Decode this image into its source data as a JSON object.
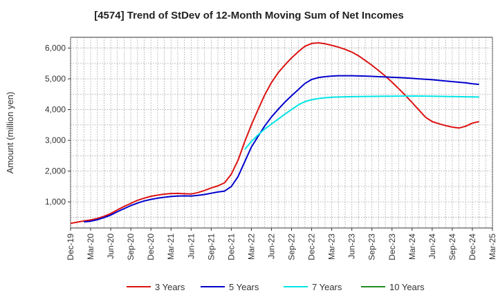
{
  "chart_data": {
    "type": "line",
    "title": "[4574]  Trend of StDev of 12-Month Moving Sum of Net Incomes",
    "ylabel": "Amount (million yen)",
    "xlabel": "",
    "ylim": [
      150,
      6350
    ],
    "yticks": [
      1000,
      2000,
      3000,
      4000,
      5000,
      6000
    ],
    "ytick_labels": [
      "1,000",
      "2,000",
      "3,000",
      "4,000",
      "5,000",
      "6,000"
    ],
    "xticks": [
      "Dec-19",
      "Mar-20",
      "Jun-20",
      "Sep-20",
      "Dec-20",
      "Mar-21",
      "Jun-21",
      "Sep-21",
      "Dec-21",
      "Mar-22",
      "Jun-22",
      "Sep-22",
      "Dec-22",
      "Mar-23",
      "Jun-23",
      "Sep-23",
      "Dec-23",
      "Mar-24",
      "Jun-24",
      "Sep-24",
      "Dec-24",
      "Mar-25"
    ],
    "grid": true,
    "legend_position": "bottom",
    "series": [
      {
        "name": "3 Years",
        "color": "#dd1111",
        "points": [
          [
            "Dec-19",
            300
          ],
          [
            "Jan-20",
            340
          ],
          [
            "Feb-20",
            380
          ],
          [
            "Mar-20",
            410
          ],
          [
            "Apr-20",
            460
          ],
          [
            "May-20",
            530
          ],
          [
            "Jun-20",
            620
          ],
          [
            "Jul-20",
            740
          ],
          [
            "Aug-20",
            850
          ],
          [
            "Sep-20",
            950
          ],
          [
            "Oct-20",
            1050
          ],
          [
            "Nov-20",
            1120
          ],
          [
            "Dec-20",
            1180
          ],
          [
            "Jan-21",
            1220
          ],
          [
            "Feb-21",
            1250
          ],
          [
            "Mar-21",
            1270
          ],
          [
            "Apr-21",
            1275
          ],
          [
            "May-21",
            1265
          ],
          [
            "Jun-21",
            1255
          ],
          [
            "Jul-21",
            1300
          ],
          [
            "Aug-21",
            1370
          ],
          [
            "Sep-21",
            1450
          ],
          [
            "Oct-21",
            1520
          ],
          [
            "Nov-21",
            1620
          ],
          [
            "Dec-21",
            1900
          ],
          [
            "Jan-22",
            2350
          ],
          [
            "Feb-22",
            2950
          ],
          [
            "Mar-22",
            3500
          ],
          [
            "Apr-22",
            4000
          ],
          [
            "May-22",
            4480
          ],
          [
            "Jun-22",
            4880
          ],
          [
            "Jul-22",
            5200
          ],
          [
            "Aug-22",
            5450
          ],
          [
            "Sep-22",
            5680
          ],
          [
            "Oct-22",
            5880
          ],
          [
            "Nov-22",
            6060
          ],
          [
            "Dec-22",
            6150
          ],
          [
            "Jan-23",
            6170
          ],
          [
            "Feb-23",
            6140
          ],
          [
            "Mar-23",
            6090
          ],
          [
            "Apr-23",
            6030
          ],
          [
            "May-23",
            5960
          ],
          [
            "Jun-23",
            5870
          ],
          [
            "Jul-23",
            5750
          ],
          [
            "Aug-23",
            5600
          ],
          [
            "Sep-23",
            5440
          ],
          [
            "Oct-23",
            5270
          ],
          [
            "Nov-23",
            5090
          ],
          [
            "Dec-23",
            4890
          ],
          [
            "Jan-24",
            4680
          ],
          [
            "Feb-24",
            4460
          ],
          [
            "Mar-24",
            4230
          ],
          [
            "Apr-24",
            3990
          ],
          [
            "May-24",
            3750
          ],
          [
            "Jun-24",
            3610
          ],
          [
            "Jul-24",
            3540
          ],
          [
            "Aug-24",
            3480
          ],
          [
            "Sep-24",
            3430
          ],
          [
            "Oct-24",
            3400
          ],
          [
            "Nov-24",
            3460
          ],
          [
            "Dec-24",
            3560
          ],
          [
            "Jan-25",
            3610
          ]
        ]
      },
      {
        "name": "5 Years",
        "color": "#0000cc",
        "points": [
          [
            "Feb-20",
            350
          ],
          [
            "Mar-20",
            370
          ],
          [
            "Apr-20",
            420
          ],
          [
            "May-20",
            490
          ],
          [
            "Jun-20",
            570
          ],
          [
            "Jul-20",
            680
          ],
          [
            "Aug-20",
            780
          ],
          [
            "Sep-20",
            880
          ],
          [
            "Oct-20",
            960
          ],
          [
            "Nov-20",
            1030
          ],
          [
            "Dec-20",
            1080
          ],
          [
            "Jan-21",
            1120
          ],
          [
            "Feb-21",
            1150
          ],
          [
            "Mar-21",
            1175
          ],
          [
            "Apr-21",
            1190
          ],
          [
            "May-21",
            1195
          ],
          [
            "Jun-21",
            1190
          ],
          [
            "Jul-21",
            1210
          ],
          [
            "Aug-21",
            1240
          ],
          [
            "Sep-21",
            1280
          ],
          [
            "Oct-21",
            1320
          ],
          [
            "Nov-21",
            1350
          ],
          [
            "Dec-21",
            1500
          ],
          [
            "Jan-22",
            1820
          ],
          [
            "Feb-22",
            2300
          ],
          [
            "Mar-22",
            2780
          ],
          [
            "Apr-22",
            3130
          ],
          [
            "May-22",
            3470
          ],
          [
            "Jun-22",
            3760
          ],
          [
            "Jul-22",
            4010
          ],
          [
            "Aug-22",
            4240
          ],
          [
            "Sep-22",
            4450
          ],
          [
            "Oct-22",
            4650
          ],
          [
            "Nov-22",
            4850
          ],
          [
            "Dec-22",
            4980
          ],
          [
            "Jan-23",
            5040
          ],
          [
            "Feb-23",
            5070
          ],
          [
            "Mar-23",
            5090
          ],
          [
            "Apr-23",
            5100
          ],
          [
            "May-23",
            5100
          ],
          [
            "Jun-23",
            5100
          ],
          [
            "Jul-23",
            5095
          ],
          [
            "Aug-23",
            5090
          ],
          [
            "Sep-23",
            5080
          ],
          [
            "Oct-23",
            5070
          ],
          [
            "Nov-23",
            5060
          ],
          [
            "Dec-23",
            5050
          ],
          [
            "Jan-24",
            5040
          ],
          [
            "Feb-24",
            5030
          ],
          [
            "Mar-24",
            5015
          ],
          [
            "Apr-24",
            5000
          ],
          [
            "May-24",
            4985
          ],
          [
            "Jun-24",
            4970
          ],
          [
            "Jul-24",
            4950
          ],
          [
            "Aug-24",
            4930
          ],
          [
            "Sep-24",
            4910
          ],
          [
            "Oct-24",
            4890
          ],
          [
            "Nov-24",
            4870
          ],
          [
            "Dec-24",
            4840
          ],
          [
            "Jan-25",
            4820
          ]
        ]
      },
      {
        "name": "7 Years",
        "color": "#00e5e5",
        "points": [
          [
            "Feb-22",
            2700
          ],
          [
            "Mar-22",
            2960
          ],
          [
            "Apr-22",
            3180
          ],
          [
            "May-22",
            3370
          ],
          [
            "Jun-22",
            3530
          ],
          [
            "Jul-22",
            3690
          ],
          [
            "Aug-22",
            3850
          ],
          [
            "Sep-22",
            4000
          ],
          [
            "Oct-22",
            4150
          ],
          [
            "Nov-22",
            4260
          ],
          [
            "Dec-22",
            4320
          ],
          [
            "Jan-23",
            4360
          ],
          [
            "Feb-23",
            4385
          ],
          [
            "Mar-23",
            4400
          ],
          [
            "Apr-23",
            4410
          ],
          [
            "May-23",
            4415
          ],
          [
            "Jun-23",
            4420
          ],
          [
            "Jul-23",
            4425
          ],
          [
            "Aug-23",
            4428
          ],
          [
            "Sep-23",
            4430
          ],
          [
            "Oct-23",
            4432
          ],
          [
            "Nov-23",
            4434
          ],
          [
            "Dec-23",
            4436
          ],
          [
            "Jan-24",
            4438
          ],
          [
            "Feb-24",
            4440
          ],
          [
            "Mar-24",
            4440
          ],
          [
            "Apr-24",
            4440
          ],
          [
            "May-24",
            4438
          ],
          [
            "Jun-24",
            4435
          ],
          [
            "Jul-24",
            4432
          ],
          [
            "Aug-24",
            4428
          ],
          [
            "Sep-24",
            4424
          ],
          [
            "Oct-24",
            4420
          ],
          [
            "Nov-24",
            4416
          ],
          [
            "Dec-24",
            4412
          ],
          [
            "Jan-25",
            4410
          ]
        ]
      },
      {
        "name": "10 Years",
        "color": "#228b22",
        "points": []
      }
    ]
  }
}
